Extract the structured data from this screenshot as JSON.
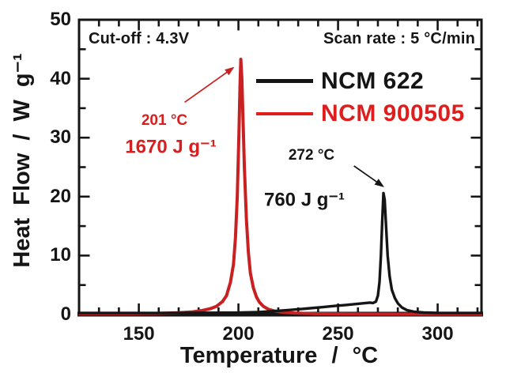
{
  "figure": {
    "cutoff_label": "Cut-off : 4.3V",
    "scan_rate_label": "Scan rate : 5 °C/min",
    "xlabel": "Temperature / °C",
    "ylabel": "Heat Flow / W g⁻¹",
    "colors": {
      "axis": "#151515",
      "black_curve": "#151515",
      "red_curve": "#c92121",
      "red_text": "#d81e1e"
    }
  },
  "legend": {
    "items": [
      {
        "label": "NCM 622",
        "color": "#151515"
      },
      {
        "label": "NCM 900505",
        "color": "#e01d1d"
      }
    ]
  },
  "annotations": {
    "red_peak": {
      "temp": "201 °C",
      "enthalpy": "1670 J g⁻¹"
    },
    "black_peak": {
      "temp": "272 °C",
      "enthalpy": "760 J g⁻¹"
    }
  },
  "chart_data": {
    "type": "line",
    "title": "",
    "xlabel": "Temperature / °C",
    "ylabel": "Heat Flow / W g⁻¹",
    "xlim": [
      120,
      322
    ],
    "ylim": [
      0,
      50
    ],
    "x_ticks": [
      150,
      200,
      250,
      300
    ],
    "y_ticks": [
      0,
      10,
      20,
      30,
      40,
      50
    ],
    "x_minor_step": 10,
    "y_minor_step": 5,
    "grid": false,
    "legend_position": "upper right",
    "series": [
      {
        "name": "NCM 900505",
        "color": "#c92121",
        "stroke_width": 4,
        "peak_temp_c": 201,
        "peak_heat_flow_w_per_g": 43,
        "enthalpy_j_per_g": 1670,
        "points": [
          [
            120,
            0.15
          ],
          [
            145,
            0.15
          ],
          [
            160,
            0.2
          ],
          [
            170,
            0.3
          ],
          [
            177,
            0.45
          ],
          [
            182,
            0.7
          ],
          [
            186,
            1.0
          ],
          [
            189,
            1.4
          ],
          [
            192,
            2.2
          ],
          [
            194,
            3.2
          ],
          [
            196,
            5.5
          ],
          [
            197.5,
            8.5
          ],
          [
            198.5,
            13
          ],
          [
            199.4,
            20
          ],
          [
            200.2,
            30
          ],
          [
            200.8,
            39
          ],
          [
            201.2,
            43.3
          ],
          [
            201.7,
            40
          ],
          [
            202.3,
            33
          ],
          [
            203,
            25
          ],
          [
            204,
            16
          ],
          [
            205,
            10.5
          ],
          [
            206,
            7
          ],
          [
            207.5,
            4.5
          ],
          [
            209,
            3
          ],
          [
            210.5,
            2.1
          ],
          [
            212.5,
            1.4
          ],
          [
            215,
            0.9
          ],
          [
            218,
            0.6
          ],
          [
            222,
            0.4
          ],
          [
            228,
            0.25
          ],
          [
            238,
            0.15
          ],
          [
            255,
            0.1
          ],
          [
            280,
            0.07
          ],
          [
            322,
            0.07
          ]
        ]
      },
      {
        "name": "NCM 622",
        "color": "#151515",
        "stroke_width": 3.4,
        "peak_temp_c": 272,
        "peak_heat_flow_w_per_g": 20.6,
        "enthalpy_j_per_g": 760,
        "points": [
          [
            120,
            0.25
          ],
          [
            160,
            0.25
          ],
          [
            185,
            0.3
          ],
          [
            200,
            0.32
          ],
          [
            210,
            0.42
          ],
          [
            218,
            0.58
          ],
          [
            226,
            0.78
          ],
          [
            234,
            1.0
          ],
          [
            242,
            1.25
          ],
          [
            248,
            1.45
          ],
          [
            254,
            1.62
          ],
          [
            259,
            1.78
          ],
          [
            263,
            1.92
          ],
          [
            266,
            2.02
          ],
          [
            267.5,
            1.95
          ],
          [
            269,
            2.2
          ],
          [
            270,
            3.2
          ],
          [
            270.8,
            5.5
          ],
          [
            271.5,
            10
          ],
          [
            272.2,
            16
          ],
          [
            272.8,
            20.6
          ],
          [
            273.4,
            19.5
          ],
          [
            274.1,
            15
          ],
          [
            274.9,
            10
          ],
          [
            275.9,
            6.5
          ],
          [
            277,
            4.2
          ],
          [
            278.5,
            2.8
          ],
          [
            280,
            1.9
          ],
          [
            282,
            1.2
          ],
          [
            284.5,
            0.75
          ],
          [
            288,
            0.48
          ],
          [
            293,
            0.33
          ],
          [
            300,
            0.27
          ],
          [
            322,
            0.25
          ]
        ]
      }
    ],
    "arrows": [
      {
        "name": "red-peak-arrow",
        "color": "#c92121",
        "from_xy": [
          173,
          36
        ],
        "to_xy": [
          198,
          42
        ]
      },
      {
        "name": "black-peak-arrow",
        "color": "#151515",
        "from_xy": [
          258,
          25.2
        ],
        "to_xy": [
          273.2,
          21.6
        ]
      }
    ]
  }
}
